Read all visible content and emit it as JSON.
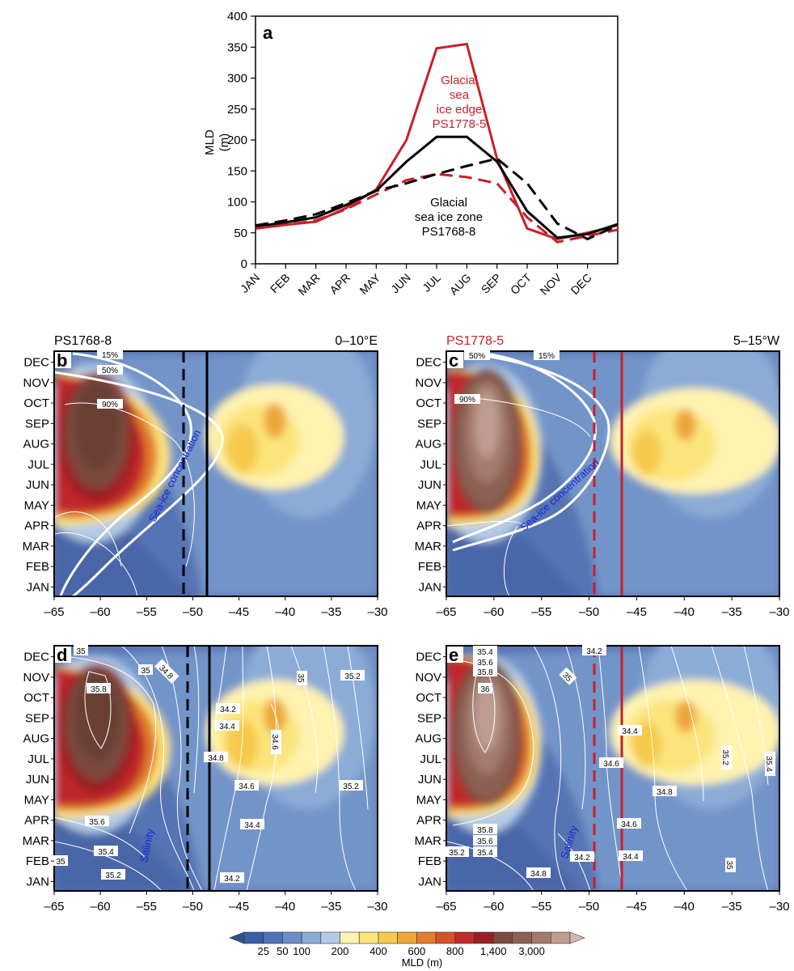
{
  "panel_a": {
    "letter": "a",
    "ylabel_1": "MLD",
    "ylabel_2": "(m)",
    "yticks": [
      "0",
      "50",
      "100",
      "150",
      "200",
      "250",
      "300",
      "350",
      "400"
    ],
    "months": [
      "JAN",
      "FEB",
      "MAR",
      "APR",
      "MAY",
      "JUN",
      "JUL",
      "AUG",
      "SEP",
      "OCT",
      "NOV",
      "DEC"
    ],
    "red_label": [
      "Glacial",
      "sea",
      "ice edge",
      "PS1778-5"
    ],
    "black_label": [
      "Glacial",
      "sea ice zone",
      "PS1768-8"
    ],
    "colors": {
      "red": "#c8202a",
      "black": "#000000"
    }
  },
  "panels": {
    "b": {
      "letter": "b",
      "site": "PS1768-8",
      "region": "0–10°E",
      "curve_label": "Sea-ice concentration",
      "ice_labels": [
        "15%",
        "50%",
        "90%"
      ]
    },
    "c": {
      "letter": "c",
      "site": "PS1778-5",
      "region": "5–15°W",
      "curve_label": "Sea-ice concentration",
      "ice_labels": [
        "50%",
        "15%",
        "90%"
      ]
    },
    "d": {
      "letter": "d",
      "curve_label": "Salinity",
      "contour_labels": [
        "35",
        "35",
        "34.8",
        "35.8",
        "34.2",
        "34.4",
        "34.6",
        "34.8",
        "35",
        "35.2",
        "34.6",
        "35.2",
        "35.6",
        "34.4",
        "35.4",
        "35",
        "35.2",
        "34.2"
      ]
    },
    "e": {
      "letter": "e",
      "curve_label": "Salinity",
      "contour_labels": [
        "35.4",
        "35.6",
        "35.8",
        "36",
        "35",
        "34.2",
        "34.4",
        "34.6",
        "35.2",
        "35.4",
        "34.8",
        "35.8",
        "35.6",
        "35.4",
        "35.2",
        "34.6",
        "34.2",
        "34.4",
        "34.8",
        "35"
      ]
    }
  },
  "map_axes": {
    "months_top_down": [
      "DEC",
      "NOV",
      "OCT",
      "SEP",
      "AUG",
      "JUL",
      "JUN",
      "MAY",
      "APR",
      "MAR",
      "FEB",
      "JAN"
    ],
    "xticks": [
      "–65",
      "–60",
      "–55",
      "–50",
      "–45",
      "–40",
      "–35",
      "–30"
    ]
  },
  "colorbar": {
    "tick_labels": [
      "25",
      "50",
      "100",
      "200",
      "400",
      "600",
      "800",
      "1,400",
      "3,000"
    ],
    "label": "MLD (m)",
    "colors": [
      "#3a5ea8",
      "#4d73b6",
      "#6a8fc6",
      "#8cabd6",
      "#b3cbe6",
      "#fff3b0",
      "#fbe47c",
      "#f6c94c",
      "#eea63a",
      "#e27e2c",
      "#d4522a",
      "#c0282a",
      "#9b1f22",
      "#7a4a3e",
      "#8c6052",
      "#a37b6d",
      "#bf9c92"
    ]
  },
  "chart_data": [
    {
      "type": "line",
      "title": "",
      "xlabel": "",
      "ylabel": "MLD (m)",
      "ylim": [
        0,
        400
      ],
      "categories": [
        "JAN",
        "FEB",
        "MAR",
        "APR",
        "MAY",
        "JUN",
        "JUL",
        "AUG",
        "SEP",
        "OCT",
        "NOV",
        "DEC"
      ],
      "series": [
        {
          "name": "Glacial sea ice edge PS1778-5",
          "style": "solid",
          "color": "#c8202a",
          "values": [
            57,
            63,
            68,
            90,
            120,
            200,
            348,
            355,
            170,
            57,
            40,
            50
          ]
        },
        {
          "name": "Glacial sea ice zone PS1768-8",
          "style": "solid",
          "color": "#000000",
          "values": [
            60,
            67,
            75,
            95,
            118,
            165,
            205,
            205,
            165,
            85,
            42,
            48
          ]
        },
        {
          "name": "",
          "style": "dashed",
          "color": "#c8202a",
          "values": [
            57,
            63,
            70,
            88,
            112,
            135,
            145,
            140,
            130,
            75,
            35,
            45
          ]
        },
        {
          "name": "",
          "style": "dashed",
          "color": "#000000",
          "values": [
            62,
            70,
            80,
            98,
            118,
            130,
            145,
            158,
            170,
            130,
            65,
            40
          ]
        }
      ],
      "end_values": {
        "red_solid": 62,
        "black_solid": 64,
        "red_dashed": 55,
        "black_dashed": 62
      }
    }
  ]
}
